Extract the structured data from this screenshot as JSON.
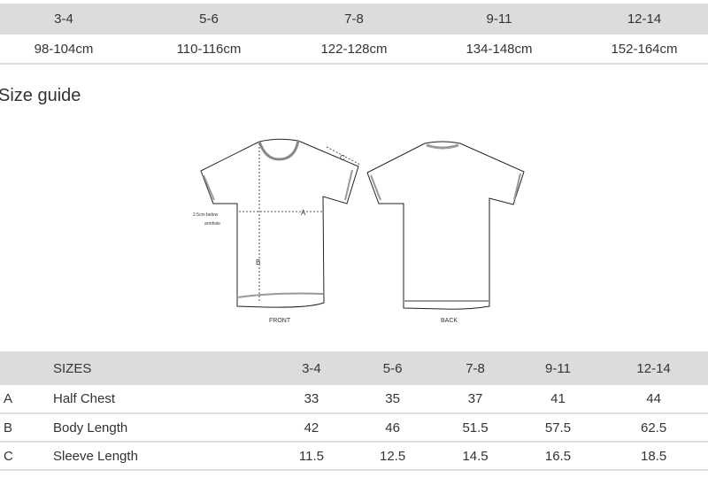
{
  "height_table": {
    "sizes": [
      "3-4",
      "5-6",
      "7-8",
      "9-11",
      "12-14"
    ],
    "heights": [
      "98-104cm",
      "110-116cm",
      "122-128cm",
      "134-148cm",
      "152-164cm"
    ]
  },
  "title": "Size guide",
  "diagram": {
    "front_label": "FRONT",
    "back_label": "BACK",
    "a": "A",
    "b": "B",
    "c": "C",
    "note_line1": "2.5cm below",
    "note_line2": "armhole"
  },
  "size_table": {
    "header": "SIZES",
    "sizes": [
      "3-4",
      "5-6",
      "7-8",
      "9-11",
      "12-14"
    ],
    "rows": [
      {
        "key": "A",
        "label": "Half Chest",
        "values": [
          "33",
          "35",
          "37",
          "41",
          "44"
        ]
      },
      {
        "key": "B",
        "label": "Body Length",
        "values": [
          "42",
          "46",
          "51.5",
          "57.5",
          "62.5"
        ]
      },
      {
        "key": "C",
        "label": "Sleeve Length",
        "values": [
          "11.5",
          "12.5",
          "14.5",
          "16.5",
          "18.5"
        ]
      }
    ]
  }
}
